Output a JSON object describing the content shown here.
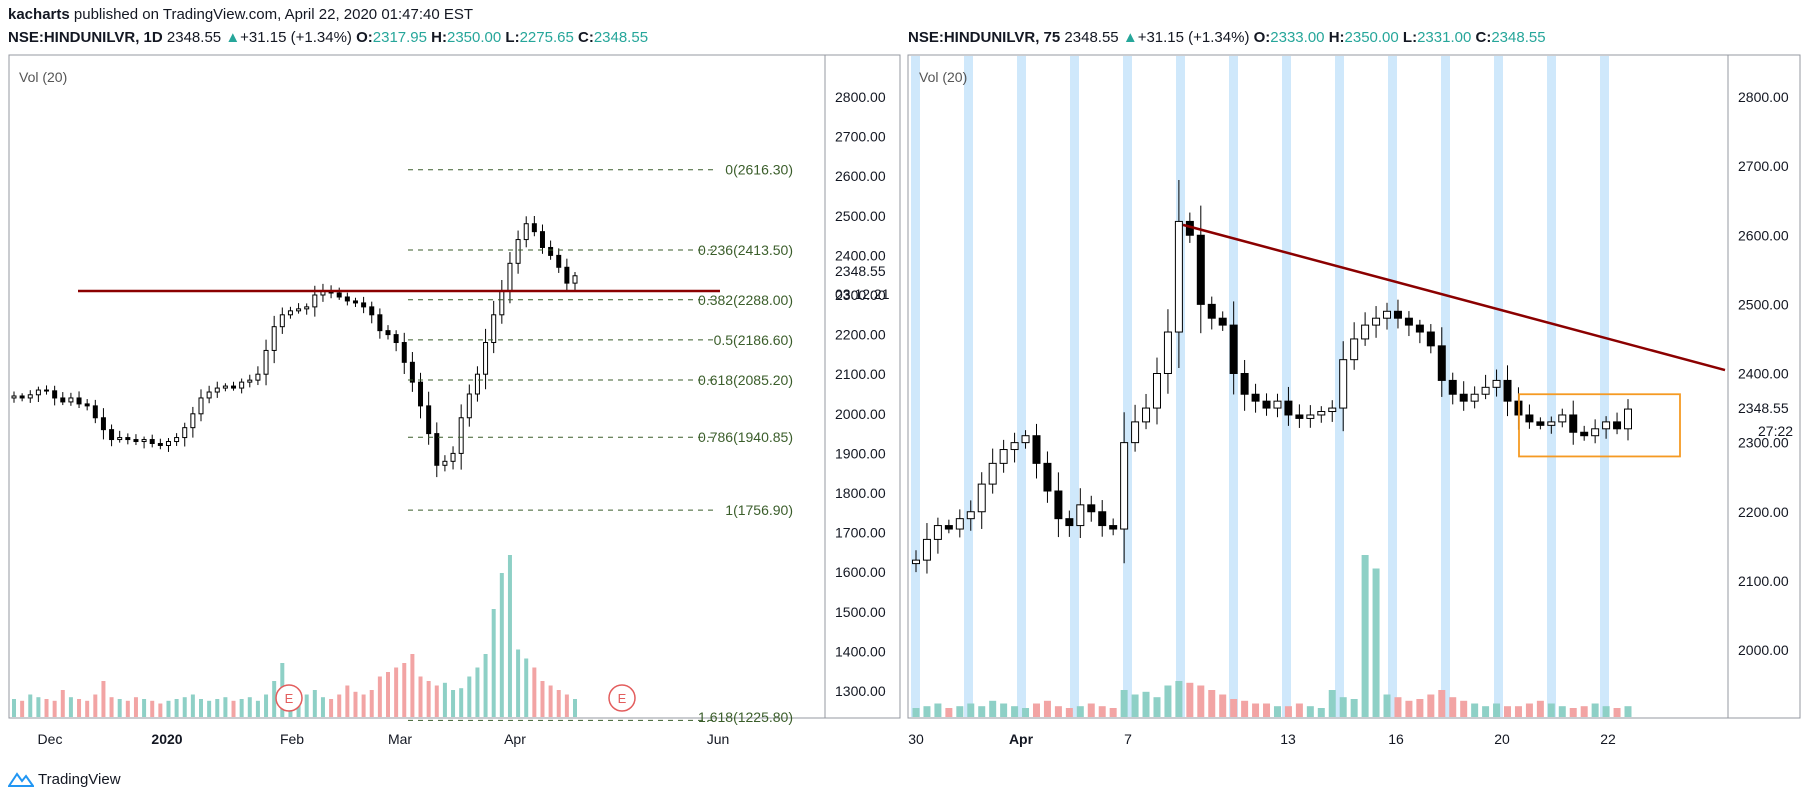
{
  "header": {
    "author": "kacharts",
    "published_text": "published on TradingView.com, April 22, 2020 01:47:40 EST"
  },
  "left_legend": {
    "symbol": "NSE:HINDUNILVR, 1D",
    "price": "2348.55",
    "change_arrow": "▲",
    "change": "+31.15 (+1.34%)",
    "o_label": "O:",
    "o": "2317.95",
    "h_label": "H:",
    "h": "2350.00",
    "l_label": "L:",
    "l": "2275.65",
    "c_label": "C:",
    "c": "2348.55"
  },
  "right_legend": {
    "symbol": "NSE:HINDUNILVR, 75",
    "price": "2348.55",
    "change_arrow": "▲",
    "change": "+31.15 (+1.34%)",
    "o_label": "O:",
    "o": "2333.00",
    "h_label": "H:",
    "h": "2350.00",
    "l_label": "L:",
    "l": "2331.00",
    "c_label": "C:",
    "c": "2348.55"
  },
  "footer": {
    "brand": "TradingView"
  },
  "colors": {
    "up_volume": "#8ed0c6",
    "down_volume": "#f2a4a4",
    "trendline": "#8b0000",
    "fib": "#3b5e2b",
    "session_band": "#cfe8fb",
    "box": "#f59a23",
    "earnings": "#e35d5d"
  },
  "chart_data": [
    {
      "type": "candlestick",
      "name": "NSE:HINDUNILVR, 1D",
      "indicator_label": "Vol (20)",
      "y_ticks": [
        "2800.00",
        "2700.00",
        "2600.00",
        "2500.00",
        "2400.00",
        "2300.00",
        "2200.00",
        "2100.00",
        "2000.00",
        "1900.00",
        "1800.00",
        "1700.00",
        "1600.00",
        "1500.00",
        "1400.00",
        "1300.00"
      ],
      "x_ticks": [
        "Dec",
        "2020",
        "Feb",
        "Mar",
        "Apr",
        "Jun"
      ],
      "price_label": "2348.55",
      "countdown_label": "03:12:21",
      "earnings_markers": [
        "E",
        "E"
      ],
      "resistance_level": 2310,
      "fib_levels": [
        {
          "label": "0(2616.30)",
          "value": 2616.3
        },
        {
          "label": "0.236(2413.50)",
          "value": 2413.5
        },
        {
          "label": "0.382(2288.00)",
          "value": 2288.0
        },
        {
          "label": "0.5(2186.60)",
          "value": 2186.6
        },
        {
          "label": "0.618(2085.20)",
          "value": 2085.2
        },
        {
          "label": "0.786(1940.85)",
          "value": 1940.85
        },
        {
          "label": "1(1756.90)",
          "value": 1756.9
        },
        {
          "label": "1.618(1225.80)",
          "value": 1225.8
        }
      ],
      "close_path": [
        2045,
        2040,
        2048,
        2060,
        2058,
        2040,
        2030,
        2040,
        2025,
        2020,
        1990,
        1960,
        1935,
        1940,
        1935,
        1930,
        1935,
        1925,
        1920,
        1930,
        1940,
        1965,
        2000,
        2040,
        2055,
        2065,
        2070,
        2065,
        2080,
        2085,
        2100,
        2160,
        2220,
        2250,
        2260,
        2265,
        2270,
        2300,
        2310,
        2305,
        2295,
        2285,
        2280,
        2270,
        2250,
        2210,
        2200,
        2180,
        2130,
        2080,
        2020,
        1950,
        1870,
        1880,
        1900,
        1990,
        2050,
        2100,
        2180,
        2250,
        2310,
        2380,
        2440,
        2480,
        2460,
        2420,
        2400,
        2370,
        2330,
        2348.55
      ],
      "volume_path": [
        20,
        18,
        25,
        22,
        20,
        18,
        30,
        22,
        20,
        18,
        25,
        40,
        22,
        20,
        18,
        22,
        20,
        18,
        15,
        18,
        20,
        22,
        25,
        20,
        18,
        20,
        22,
        18,
        20,
        22,
        18,
        25,
        40,
        60,
        35,
        28,
        25,
        30,
        22,
        20,
        25,
        35,
        28,
        25,
        30,
        45,
        50,
        55,
        60,
        70,
        45,
        40,
        35,
        38,
        30,
        32,
        45,
        55,
        70,
        120,
        160,
        180,
        75,
        65,
        55,
        40,
        35,
        30,
        25,
        20
      ]
    },
    {
      "type": "candlestick",
      "name": "NSE:HINDUNILVR, 75",
      "indicator_label": "Vol (20)",
      "y_ticks": [
        "2800.00",
        "2700.00",
        "2600.00",
        "2500.00",
        "2400.00",
        "2300.00",
        "2200.00",
        "2100.00",
        "2000.00"
      ],
      "x_ticks": [
        "30",
        "Apr",
        "7",
        "13",
        "16",
        "20",
        "22"
      ],
      "price_label": "2348.55",
      "countdown_label": "27:22",
      "trendline": {
        "from_value": 2615,
        "to_value": 2405
      },
      "consolidation_box": {
        "top": 2370,
        "bottom": 2280
      },
      "session_count": 14,
      "close_path": [
        2130,
        2160,
        2180,
        2175,
        2190,
        2200,
        2240,
        2270,
        2290,
        2300,
        2310,
        2270,
        2230,
        2190,
        2180,
        2210,
        2200,
        2180,
        2175,
        2300,
        2330,
        2350,
        2400,
        2460,
        2620,
        2600,
        2500,
        2480,
        2470,
        2400,
        2370,
        2360,
        2350,
        2360,
        2340,
        2335,
        2340,
        2345,
        2350,
        2420,
        2450,
        2470,
        2480,
        2490,
        2480,
        2470,
        2460,
        2440,
        2390,
        2370,
        2360,
        2370,
        2380,
        2390,
        2360,
        2340,
        2330,
        2325,
        2330,
        2340,
        2315,
        2310,
        2320,
        2330,
        2320,
        2348.55
      ],
      "volume_path": [
        10,
        12,
        15,
        10,
        12,
        15,
        12,
        18,
        15,
        12,
        10,
        15,
        18,
        12,
        10,
        12,
        15,
        12,
        10,
        30,
        25,
        28,
        22,
        35,
        40,
        38,
        35,
        30,
        25,
        20,
        18,
        15,
        15,
        12,
        12,
        15,
        12,
        10,
        30,
        22,
        20,
        180,
        165,
        25,
        22,
        18,
        20,
        25,
        30,
        22,
        18,
        15,
        12,
        15,
        12,
        12,
        15,
        18,
        15,
        12,
        10,
        12,
        15,
        12,
        10,
        12
      ]
    }
  ]
}
